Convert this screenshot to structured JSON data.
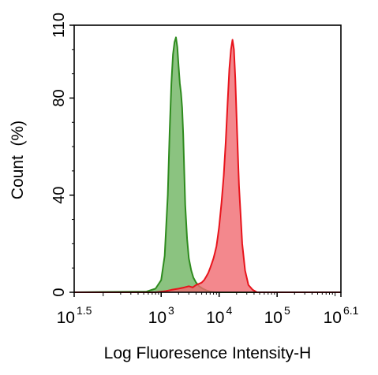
{
  "chart_data": {
    "type": "area",
    "title": "",
    "xlabel": "Log Fluoresence Intensity-H",
    "ylabel": "Count  (%)",
    "x_scale": "log",
    "xlim": [
      31.6,
      1260000
    ],
    "ylim": [
      0,
      110
    ],
    "grid": false,
    "legend": "none",
    "x_ticks": [
      {
        "base": "10",
        "exp": "1.5",
        "value": 31.6
      },
      {
        "base": "10",
        "exp": "3",
        "value": 1000
      },
      {
        "base": "10",
        "exp": "4",
        "value": 10000
      },
      {
        "base": "10",
        "exp": "5",
        "value": 100000
      },
      {
        "base": "10",
        "exp": "6.1",
        "value": 1260000
      }
    ],
    "y_ticks": [
      {
        "label": "0",
        "value": 0
      },
      {
        "label": "40",
        "value": 40
      },
      {
        "label": "80",
        "value": 80
      },
      {
        "label": "110",
        "value": 110
      }
    ],
    "series": [
      {
        "color": "#2e8b1e",
        "fill": "#5aa94a",
        "fill_opacity": 0.7,
        "x": [
          30,
          560,
          800,
          1000,
          1150,
          1300,
          1400,
          1500,
          1600,
          1700,
          1800,
          1900,
          2000,
          2100,
          2200,
          2300,
          2400,
          2500,
          2600,
          2800,
          3000,
          3300,
          3600,
          4000,
          4500,
          5200,
          6000,
          7000,
          8000,
          9000,
          1260000
        ],
        "y": [
          0,
          0.3,
          1.5,
          5,
          15,
          40,
          66,
          86,
          98,
          103,
          105,
          101,
          93,
          86,
          82,
          76,
          65,
          50,
          36,
          22,
          14,
          9,
          6,
          4,
          2.5,
          1.5,
          0.8,
          0.3,
          0.1,
          0,
          0
        ]
      },
      {
        "color": "#e8141c",
        "fill": "#f06a70",
        "fill_opacity": 0.8,
        "x": [
          30,
          800,
          1200,
          1500,
          2000,
          2500,
          3000,
          3500,
          4000,
          4500,
          5000,
          5500,
          6000,
          6500,
          7000,
          7500,
          8000,
          8500,
          9000,
          9500,
          10000,
          11000,
          12000,
          13000,
          14000,
          15000,
          16000,
          17000,
          18000,
          19000,
          20000,
          22000,
          25000,
          28000,
          32000,
          38000,
          45000,
          1260000
        ],
        "y": [
          0,
          0,
          0.5,
          1,
          1.5,
          2,
          2.5,
          2,
          3,
          3.5,
          4,
          5,
          6.5,
          8,
          10,
          12,
          14,
          16.5,
          19,
          23,
          27,
          37,
          48,
          62,
          78,
          92,
          100,
          104,
          100,
          88,
          72,
          44,
          20,
          9,
          3,
          1,
          0,
          0
        ]
      }
    ]
  }
}
